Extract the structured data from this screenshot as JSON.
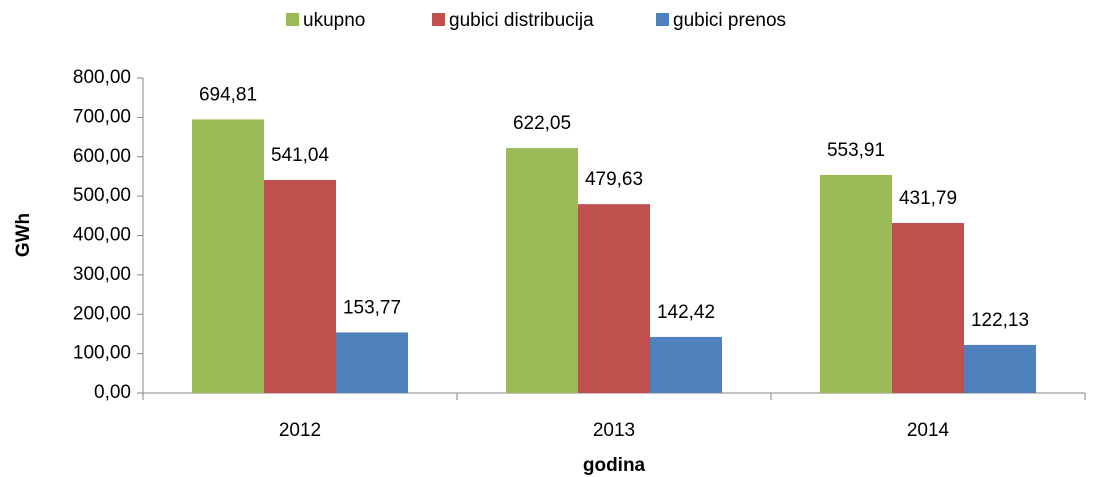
{
  "chart_data": {
    "type": "bar",
    "categories": [
      "2012",
      "2013",
      "2014"
    ],
    "series": [
      {
        "name": "ukupno",
        "color": "#9bbb59",
        "values": [
          694.81,
          622.05,
          553.91
        ],
        "value_labels": [
          "694,81",
          "622,05",
          "553,91"
        ]
      },
      {
        "name": "gubici distribucija",
        "color": "#c0504d",
        "values": [
          541.04,
          479.63,
          431.79
        ],
        "value_labels": [
          "541,04",
          "479,63",
          "431,79"
        ]
      },
      {
        "name": "gubici prenos",
        "color": "#4f81bd",
        "values": [
          153.77,
          142.42,
          122.13
        ],
        "value_labels": [
          "153,77",
          "142,42",
          "122,13"
        ]
      }
    ],
    "xlabel": "godina",
    "ylabel": "GWh",
    "ylim": [
      0,
      800
    ],
    "yticks": [
      {
        "value": 0,
        "label": "0,00"
      },
      {
        "value": 100,
        "label": "100,00"
      },
      {
        "value": 200,
        "label": "200,00"
      },
      {
        "value": 300,
        "label": "300,00"
      },
      {
        "value": 400,
        "label": "400,00"
      },
      {
        "value": 500,
        "label": "500,00"
      },
      {
        "value": 600,
        "label": "600,00"
      },
      {
        "value": 700,
        "label": "700,00"
      },
      {
        "value": 800,
        "label": "800,00"
      }
    ],
    "grid": false,
    "legend": "top"
  }
}
